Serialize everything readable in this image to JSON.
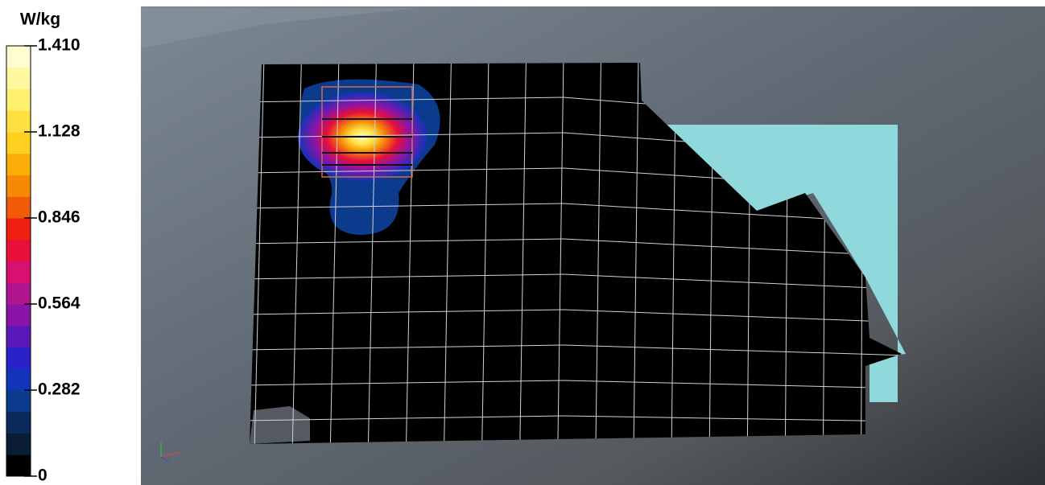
{
  "colorbar": {
    "unit": "W/kg",
    "ticks": [
      "1.410",
      "1.128",
      "0.846",
      "0.564",
      "0.282",
      "0"
    ]
  }
}
